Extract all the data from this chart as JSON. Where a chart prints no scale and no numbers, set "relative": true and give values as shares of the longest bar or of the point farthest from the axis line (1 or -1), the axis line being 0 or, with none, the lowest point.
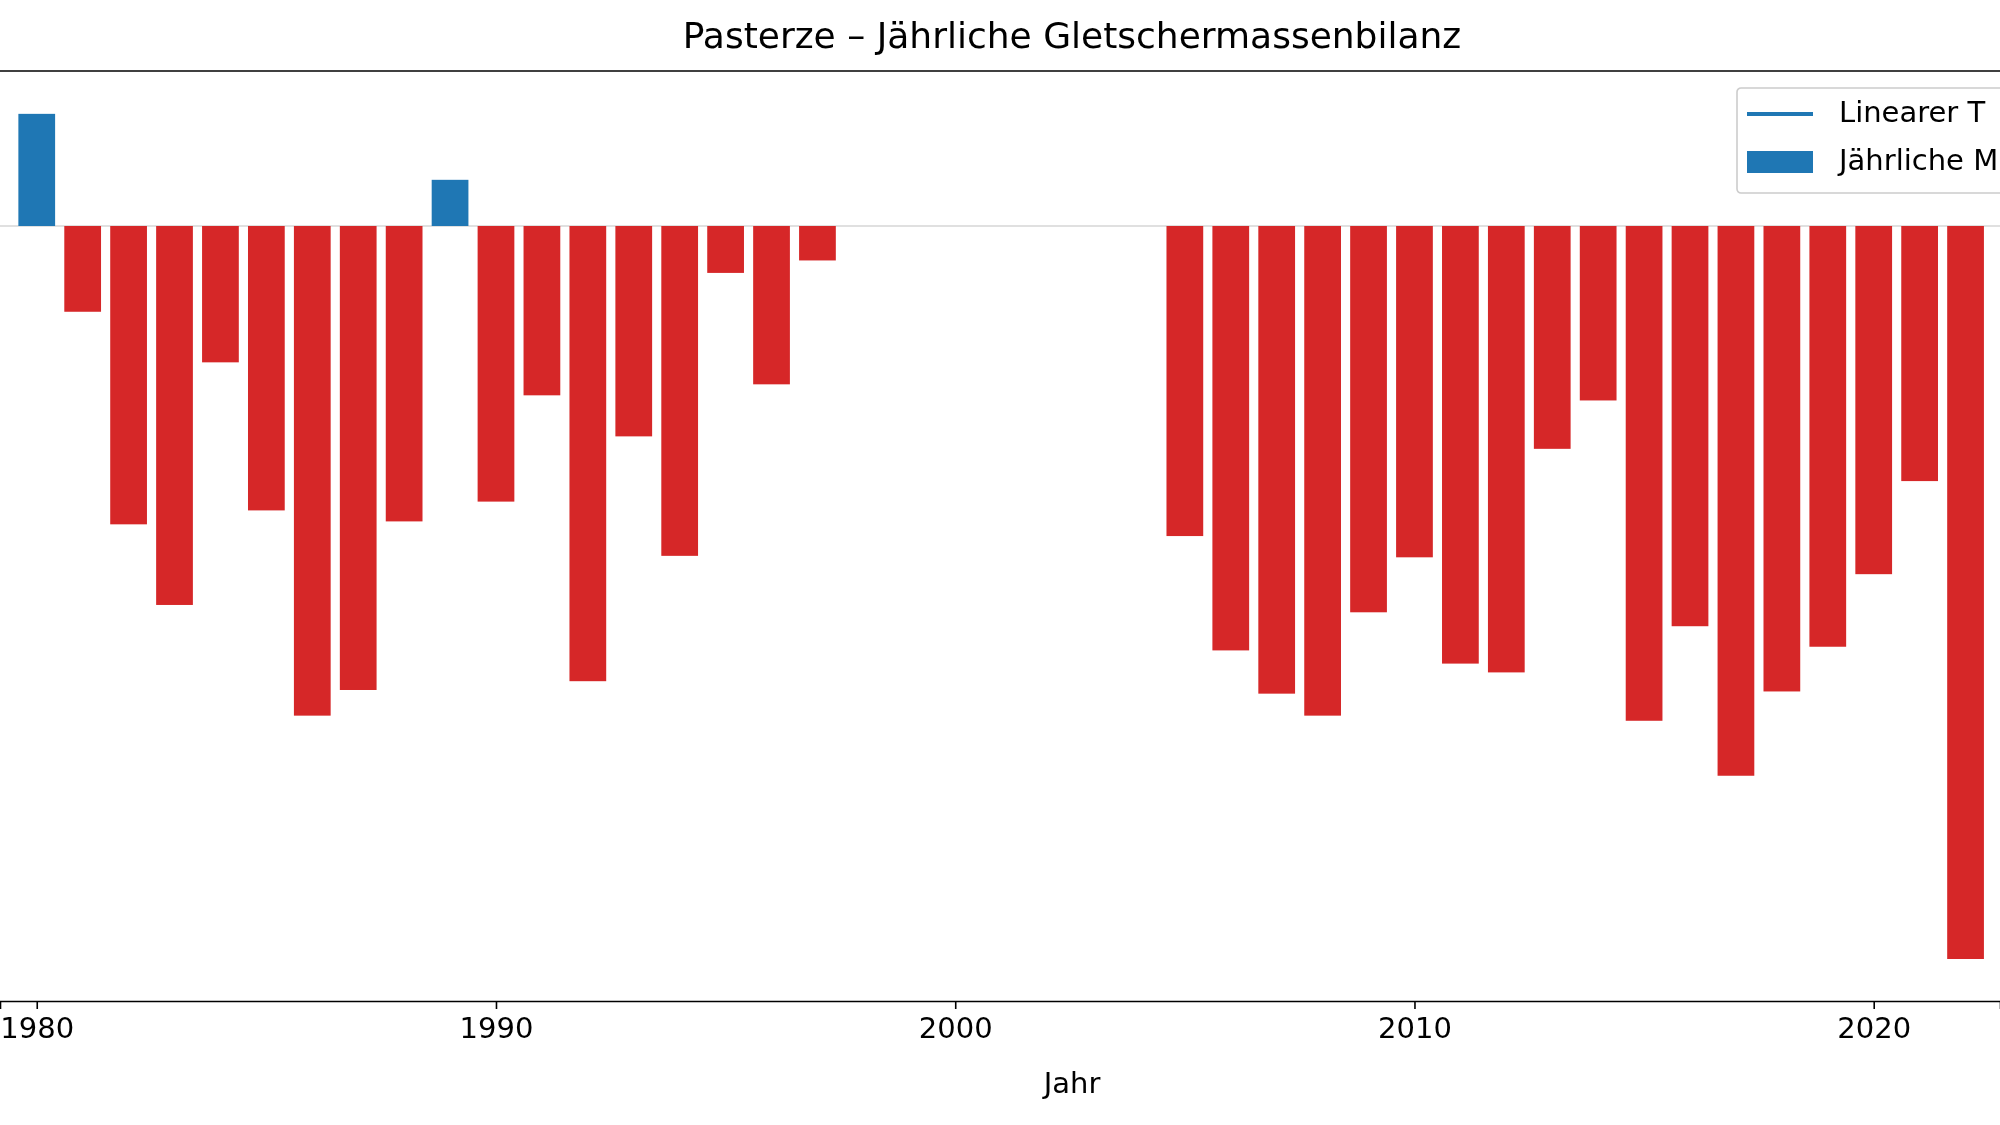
{
  "chart_data": {
    "type": "bar",
    "title": "Pasterze – Jährliche Gletschermassenbilanz",
    "xlabel": "Jahr",
    "relative": true,
    "xlim": [
      1979.2,
      2022.75
    ],
    "xticks": [
      1980,
      1990,
      2000,
      2010,
      2020
    ],
    "legend": "top right",
    "series": [
      {
        "type": "line",
        "name": "Linearer T",
        "color": "#1f77b4"
      },
      {
        "name": "Jährliche M",
        "color": "#1f77b4",
        "x": [
          1980,
          1981,
          1982,
          1983,
          1984,
          1985,
          1986,
          1987,
          1988,
          1989,
          1990,
          1991,
          1992,
          1993,
          1994,
          1995,
          1996,
          1997,
          2005,
          2006,
          2007,
          2008,
          2009,
          2010,
          2011,
          2012,
          2013,
          2014,
          2015,
          2016,
          2017,
          2018,
          2019,
          2020,
          2021,
          2022
        ],
        "values": [
          0.153,
          -0.117,
          -0.407,
          -0.517,
          -0.186,
          -0.388,
          -0.668,
          -0.633,
          -0.403,
          0.063,
          -0.376,
          -0.231,
          -0.621,
          -0.287,
          -0.45,
          -0.064,
          -0.216,
          -0.047,
          -0.423,
          -0.579,
          -0.638,
          -0.668,
          -0.527,
          -0.452,
          -0.597,
          -0.609,
          -0.304,
          -0.238,
          -0.675,
          -0.546,
          -0.75,
          -0.635,
          -0.574,
          -0.475,
          -0.348,
          -1
        ],
        "colors": [
          "#1f77b4",
          "#d62728",
          "#d62728",
          "#d62728",
          "#d62728",
          "#d62728",
          "#d62728",
          "#d62728",
          "#d62728",
          "#1f77b4",
          "#d62728",
          "#d62728",
          "#d62728",
          "#d62728",
          "#d62728",
          "#d62728",
          "#d62728",
          "#d62728",
          "#d62728",
          "#d62728",
          "#d62728",
          "#d62728",
          "#d62728",
          "#d62728",
          "#d62728",
          "#d62728",
          "#d62728",
          "#d62728",
          "#d62728",
          "#d62728",
          "#d62728",
          "#d62728",
          "#d62728",
          "#d62728",
          "#d62728",
          "#d62728"
        ]
      }
    ]
  }
}
